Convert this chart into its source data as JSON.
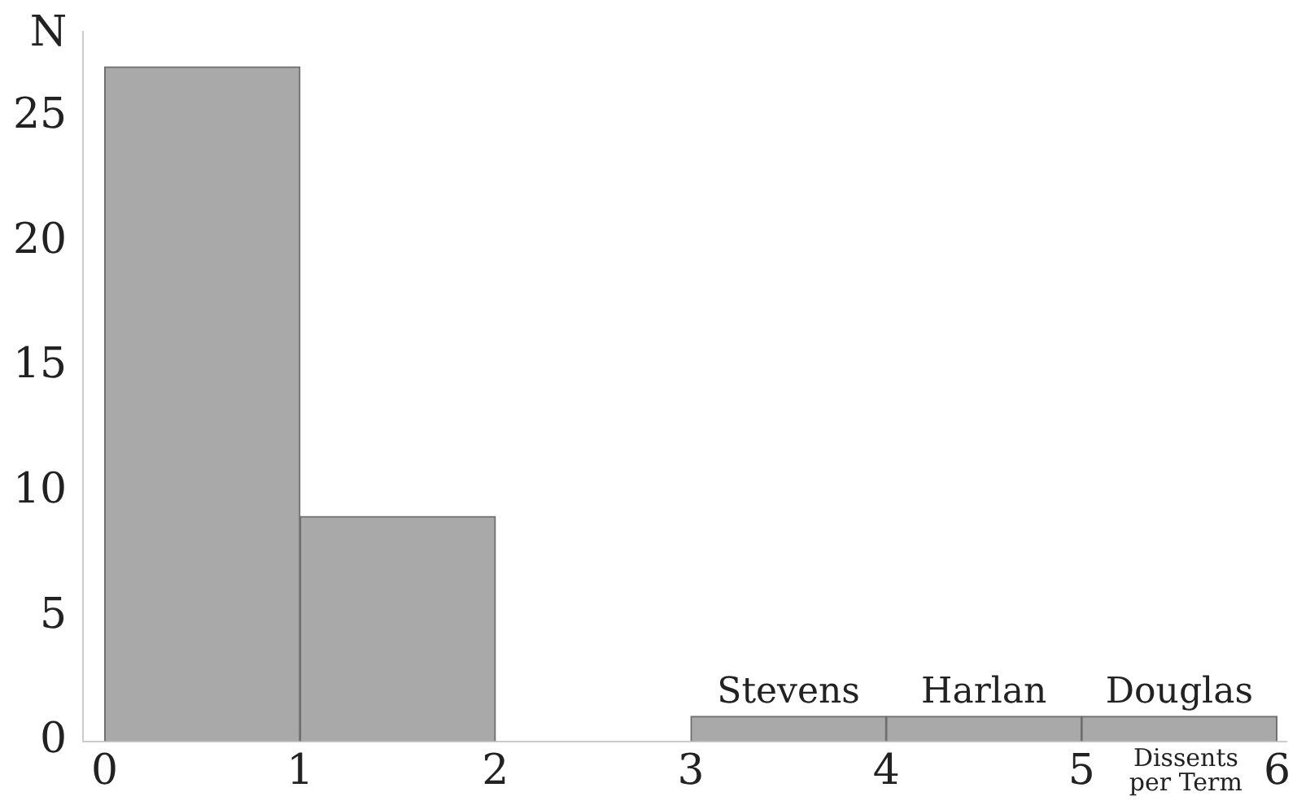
{
  "chart_data": {
    "type": "histogram",
    "xlabel": "Dissents per Term",
    "ylabel": "N",
    "bins": [
      0,
      1,
      2,
      3,
      4,
      5,
      6
    ],
    "values": [
      27,
      9,
      0,
      1,
      1,
      1
    ],
    "color": "#a8a9a8",
    "xlim": [
      -0.11,
      6.05
    ],
    "xticks": [
      0,
      1,
      2,
      3,
      4,
      5,
      6
    ],
    "ylim": [
      0,
      28.4
    ],
    "yticks": [
      0,
      5,
      10,
      15,
      20,
      25
    ],
    "grid": false,
    "legend": false,
    "annotations": [
      {
        "text": "Stevens",
        "x": 3.5,
        "y": 1
      },
      {
        "text": "Harlan",
        "x": 4.5,
        "y": 1
      },
      {
        "text": "Douglas",
        "x": 5.5,
        "y": 1
      }
    ]
  }
}
